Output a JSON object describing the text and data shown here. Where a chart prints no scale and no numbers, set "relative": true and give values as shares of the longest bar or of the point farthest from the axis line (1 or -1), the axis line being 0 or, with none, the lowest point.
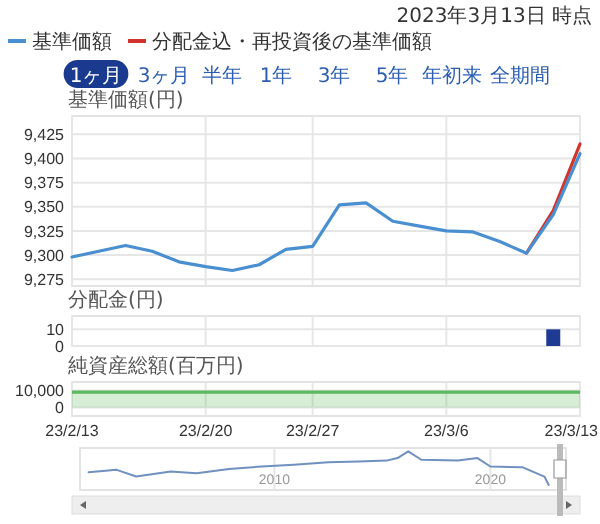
{
  "chart_data": [
    {
      "type": "line",
      "subtitle": "2023年3月13日 時点",
      "ylabel": "基準価額(円)",
      "annotations": [
        "1ヶ月",
        "3ヶ月",
        "半年",
        "1年",
        "3年",
        "5年",
        "年初来",
        "全期間"
      ],
      "categories": [
        null,
        null,
        null,
        null,
        null,
        null,
        null,
        null,
        null,
        null,
        null,
        null,
        null,
        null,
        null,
        null,
        null,
        null,
        null,
        null
      ],
      "series": [
        {
          "name": "分配金込・再投資後の基準価額",
          "color": "#d0342c",
          "values": [
            null,
            null,
            null,
            null,
            null,
            null,
            null,
            null,
            null,
            null,
            null,
            null,
            null,
            null,
            null,
            null,
            null,
            9302,
            9346,
            9415
          ]
        },
        {
          "name": "基準価額",
          "color": "#4a8fd0",
          "values": [
            9298,
            9304,
            9310,
            9304,
            9293,
            9288,
            9284,
            9290,
            9306,
            9309,
            9352,
            9354,
            9335,
            9330,
            9325,
            9324,
            9314,
            9302,
            9342,
            9405
          ]
        }
      ],
      "ylim": [
        9268,
        9444
      ],
      "yticks": [
        {
          "value": 9275,
          "label": "9,275"
        },
        {
          "value": 9300,
          "label": "9,300"
        },
        {
          "value": 9325,
          "label": "9,325"
        },
        {
          "value": 9350,
          "label": "9,350"
        },
        {
          "value": 9375,
          "label": "9,375"
        },
        {
          "value": 9400,
          "label": "9,400"
        },
        {
          "value": 9425,
          "label": "9,425"
        }
      ],
      "grid": true,
      "legend": "top left",
      "tick_labels": "y"
    },
    {
      "type": "bar",
      "ylabel": "分配金(円)",
      "categories": [
        null,
        null,
        null,
        null,
        null,
        null,
        null,
        null,
        null,
        null,
        null,
        null,
        null,
        null,
        null,
        null,
        null,
        null,
        null,
        null
      ],
      "values": [
        null,
        null,
        null,
        null,
        null,
        null,
        null,
        null,
        null,
        null,
        null,
        null,
        null,
        null,
        null,
        null,
        null,
        null,
        10,
        null
      ],
      "color": "#1f3a93",
      "ylim": [
        0,
        18
      ],
      "yticks": [
        {
          "value": 0,
          "label": "0"
        },
        {
          "value": 10,
          "label": "10"
        }
      ],
      "grid": true,
      "tick_labels": "y"
    },
    {
      "type": "area",
      "ylabel": "純資産総額(百万円)",
      "categories": [
        "23/2/13",
        null,
        null,
        null,
        null,
        "23/2/20",
        null,
        null,
        null,
        "23/2/27",
        null,
        null,
        null,
        null,
        "23/3/6",
        null,
        null,
        null,
        null,
        "23/3/13"
      ],
      "values": [
        9000,
        9000,
        9000,
        9000,
        9000,
        9000,
        9000,
        9000,
        9000,
        9000,
        9000,
        9000,
        9000,
        9000,
        9000,
        9000,
        9000,
        9000,
        9000,
        9000
      ],
      "color": "#5cb85c",
      "ylim": [
        -5000,
        15000
      ],
      "yticks": [
        0,
        {
          "value": 10000,
          "label": "10,000"
        }
      ],
      "grid": true
    },
    {
      "type": "line",
      "relative": true,
      "x": [
        2001.4,
        2002.7,
        2003.6,
        2005.2,
        2006.4,
        2007.9,
        2009.4,
        2010.9,
        2012.5,
        2013.9,
        2015.2,
        2015.7,
        2016.2,
        2016.8,
        2018.5,
        2019.4,
        2020,
        2021.5,
        2022.5,
        2022.7
      ],
      "values": [
        0.375,
        0.45,
        0.25,
        0.4,
        0.35,
        0.475,
        0.55,
        0.6,
        0.675,
        0.7,
        0.725,
        0.8,
        1,
        0.75,
        0.725,
        0.8,
        0.55,
        0.525,
        0.25,
        0
      ],
      "color": "#7090c0",
      "xlim": [
        2001,
        2023.5
      ],
      "xticks": [
        2010,
        2020
      ],
      "grid": "x",
      "tick_labels": "x"
    }
  ]
}
